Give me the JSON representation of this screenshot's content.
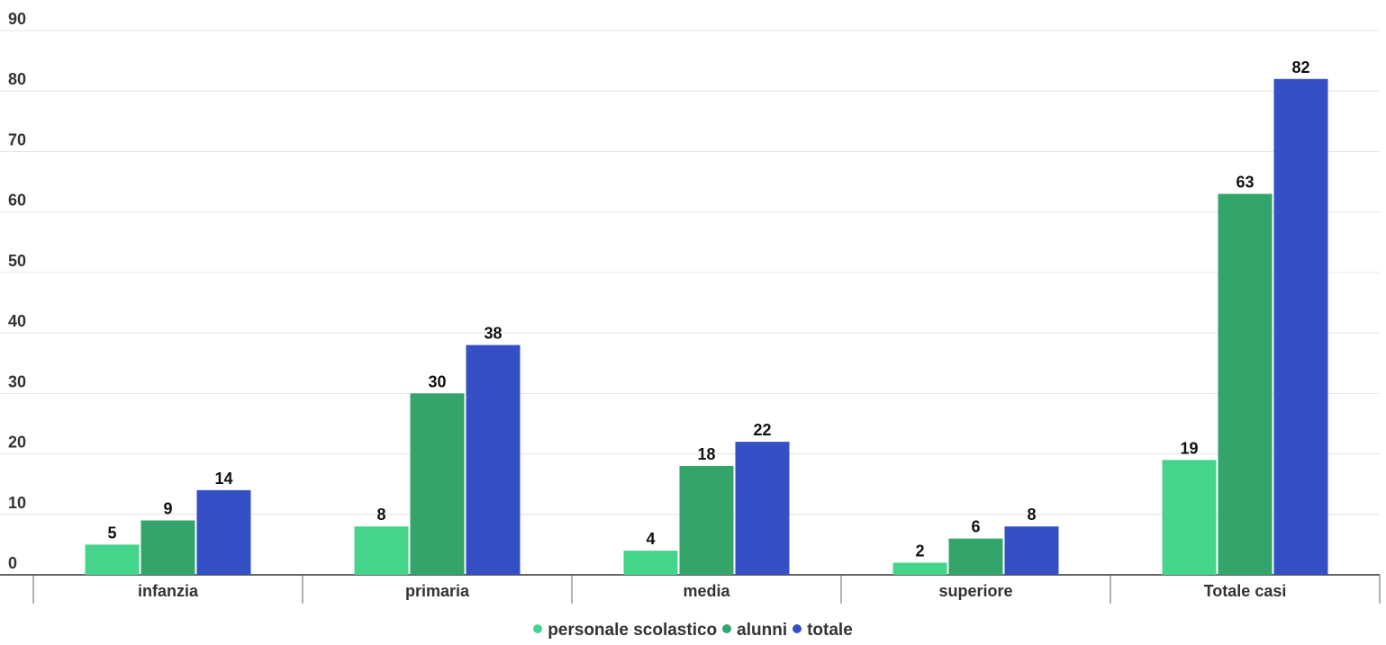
{
  "chart_data": {
    "type": "bar",
    "categories": [
      "infanzia",
      "primaria",
      "media",
      "superiore",
      "Totale casi"
    ],
    "series": [
      {
        "name": "personale scolastico",
        "color": "#45d48c",
        "values": [
          5,
          8,
          4,
          2,
          19
        ]
      },
      {
        "name": "alunni",
        "color": "#33a56b",
        "values": [
          9,
          30,
          18,
          6,
          63
        ]
      },
      {
        "name": "totale",
        "color": "#3450c4",
        "values": [
          14,
          38,
          22,
          8,
          82
        ]
      }
    ],
    "ylim": [
      0,
      90
    ],
    "yticks": [
      0,
      10,
      20,
      30,
      40,
      50,
      60,
      70,
      80,
      90
    ],
    "grid": true,
    "legend_position": "bottom-center",
    "data_labels": true
  }
}
